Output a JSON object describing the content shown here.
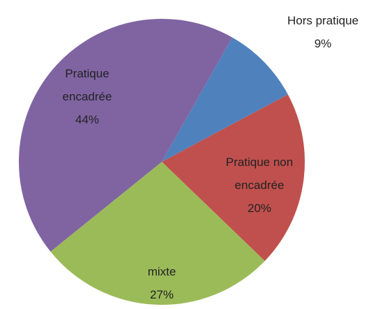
{
  "chart_data": {
    "type": "pie",
    "categories": [
      "Hors pratique",
      "Pratique non encadrée",
      "mixte",
      "Pratique encadrée"
    ],
    "values": [
      9,
      20,
      27,
      44
    ],
    "value_labels": [
      "9%",
      "20%",
      "27%",
      "44%"
    ],
    "colors": [
      "#4f81bd",
      "#c0504d",
      "#9bbb59",
      "#8064a2"
    ]
  }
}
